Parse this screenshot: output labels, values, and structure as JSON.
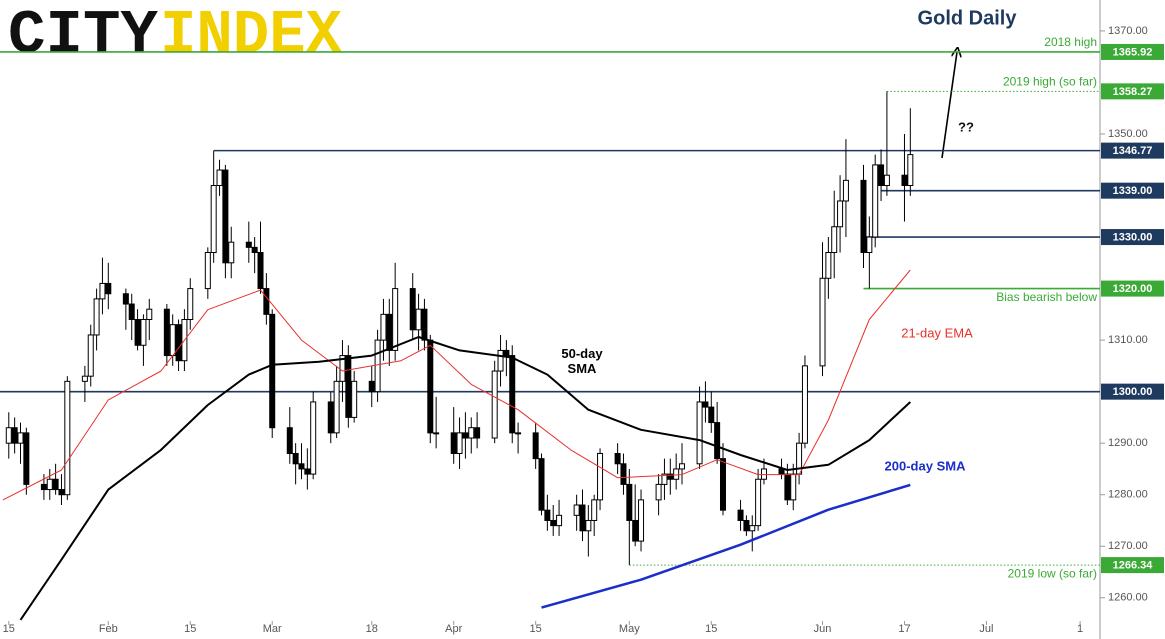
{
  "chart_data": {
    "type": "candlestick",
    "title": "Gold Daily",
    "logo": [
      "CITY",
      "INDEX"
    ],
    "xlim": [
      13.5,
      201.4
    ],
    "xticks": [
      15,
      {
        "value": 32,
        "label": "Feb"
      },
      {
        "value": 46,
        "label": "15"
      },
      {
        "value": 60,
        "label": "Mar"
      },
      {
        "value": 77,
        "label": "18"
      },
      {
        "value": 91,
        "label": "Apr"
      },
      {
        "value": 105,
        "label": "15"
      },
      {
        "value": 121,
        "label": "May"
      },
      {
        "value": 135,
        "label": "15"
      },
      {
        "value": 154,
        "label": "Jun"
      },
      {
        "value": 168,
        "label": "17"
      },
      {
        "value": 182,
        "label": "Jul"
      },
      {
        "value": 198,
        "label": "1"
      }
    ],
    "ylim": [
      1252,
      1376
    ],
    "yticks": [
      {
        "value": 1260,
        "label": "1260.00"
      },
      {
        "value": 1270,
        "label": "1270.00"
      },
      {
        "value": 1280,
        "label": "1280.00"
      },
      {
        "value": 1290,
        "label": "1290.00"
      },
      {
        "value": 1310,
        "label": "1310.00"
      },
      {
        "value": 1350,
        "label": "1350.00"
      },
      {
        "value": 1370,
        "label": "1370.00"
      }
    ],
    "bull_color": "#ffffff",
    "bear_color": "#000000",
    "candles": [
      [
        15,
        1290,
        1296,
        1287,
        1293
      ],
      [
        16,
        1293,
        1295,
        1288,
        1290
      ],
      [
        17,
        1290,
        1294,
        1286,
        1292
      ],
      [
        18,
        1292,
        1293,
        1280,
        1282
      ],
      [
        21,
        1282,
        1284,
        1279,
        1281
      ],
      [
        22,
        1281,
        1285,
        1279,
        1283
      ],
      [
        23,
        1283,
        1286,
        1280,
        1281
      ],
      [
        24,
        1281,
        1284,
        1278,
        1280
      ],
      [
        25,
        1280,
        1303,
        1279,
        1302
      ],
      [
        28,
        1302,
        1305,
        1298,
        1303
      ],
      [
        29,
        1303,
        1313,
        1301,
        1311
      ],
      [
        30,
        1311,
        1320,
        1308,
        1318
      ],
      [
        31,
        1318,
        1326,
        1315,
        1321
      ],
      [
        32,
        1321,
        1325,
        1316,
        1319
      ],
      [
        35,
        1319,
        1320,
        1312,
        1317
      ],
      [
        36,
        1317,
        1319,
        1310,
        1314
      ],
      [
        37,
        1314,
        1316,
        1308,
        1309
      ],
      [
        38,
        1309,
        1315,
        1305,
        1314
      ],
      [
        39,
        1314,
        1318,
        1310,
        1316
      ],
      [
        42,
        1316,
        1317,
        1305,
        1307
      ],
      [
        43,
        1307,
        1315,
        1305,
        1313
      ],
      [
        44,
        1313,
        1314,
        1304,
        1306
      ],
      [
        45,
        1306,
        1316,
        1304,
        1314
      ],
      [
        46,
        1314,
        1322,
        1312,
        1320
      ],
      [
        49,
        1320,
        1328,
        1318,
        1327
      ],
      [
        50,
        1327,
        1346.77,
        1325,
        1340
      ],
      [
        51,
        1340,
        1345,
        1338,
        1343
      ],
      [
        52,
        1343,
        1344,
        1322,
        1325
      ],
      [
        53,
        1325,
        1332,
        1322,
        1329
      ],
      [
        56,
        1329,
        1333,
        1325,
        1328
      ],
      [
        57,
        1328,
        1330,
        1323,
        1327
      ],
      [
        58,
        1327,
        1333,
        1319,
        1320
      ],
      [
        59,
        1320,
        1323,
        1313,
        1315
      ],
      [
        60,
        1315,
        1316,
        1291,
        1293
      ],
      [
        63,
        1293,
        1297,
        1286,
        1288
      ],
      [
        64,
        1288,
        1290,
        1282,
        1286
      ],
      [
        65,
        1286,
        1290,
        1283,
        1285
      ],
      [
        66,
        1285,
        1289,
        1281,
        1284
      ],
      [
        67,
        1284,
        1300,
        1283,
        1298
      ],
      [
        70,
        1298,
        1300,
        1290,
        1292
      ],
      [
        71,
        1292,
        1305,
        1291,
        1302
      ],
      [
        72,
        1302,
        1310,
        1298,
        1307
      ],
      [
        73,
        1307,
        1309,
        1293,
        1295
      ],
      [
        74,
        1295,
        1304,
        1294,
        1302
      ],
      [
        77,
        1302,
        1305,
        1297,
        1300
      ],
      [
        78,
        1300,
        1312,
        1298,
        1310
      ],
      [
        79,
        1310,
        1318,
        1306,
        1315
      ],
      [
        80,
        1315,
        1318,
        1305,
        1308
      ],
      [
        81,
        1308,
        1325,
        1306,
        1320
      ],
      [
        84,
        1320,
        1323,
        1310,
        1312
      ],
      [
        85,
        1312,
        1319,
        1308,
        1316
      ],
      [
        86,
        1316,
        1318,
        1308,
        1310
      ],
      [
        87,
        1310,
        1311,
        1290,
        1292
      ],
      [
        88,
        1292,
        1299,
        1289,
        1292
      ],
      [
        91,
        1292,
        1297,
        1286,
        1288
      ],
      [
        92,
        1288,
        1295,
        1285,
        1292
      ],
      [
        93,
        1292,
        1296,
        1287,
        1291
      ],
      [
        94,
        1291,
        1295,
        1288,
        1293
      ],
      [
        95,
        1293,
        1296,
        1289,
        1291
      ],
      [
        98,
        1291,
        1306,
        1290,
        1304
      ],
      [
        99,
        1304,
        1311,
        1301,
        1308
      ],
      [
        100,
        1308,
        1310,
        1303,
        1307
      ],
      [
        101,
        1307,
        1309,
        1290,
        1292
      ],
      [
        102,
        1292,
        1294,
        1288,
        1292
      ],
      [
        105,
        1292,
        1294,
        1285,
        1287
      ],
      [
        106,
        1287,
        1288,
        1276,
        1277
      ],
      [
        107,
        1277,
        1280,
        1273,
        1275
      ],
      [
        108,
        1275,
        1278,
        1272,
        1274
      ],
      [
        109,
        1274,
        1279,
        1272,
        1276
      ],
      [
        112,
        1276,
        1280,
        1273,
        1278
      ],
      [
        113,
        1278,
        1281,
        1271,
        1273
      ],
      [
        114,
        1273,
        1278,
        1268,
        1275
      ],
      [
        115,
        1275,
        1280,
        1272,
        1279
      ],
      [
        116,
        1279,
        1289,
        1277,
        1288
      ],
      [
        119,
        1288,
        1290,
        1284,
        1286
      ],
      [
        120,
        1286,
        1288,
        1280,
        1282
      ],
      [
        121,
        1282,
        1285,
        1266.34,
        1275
      ],
      [
        122,
        1275,
        1282,
        1270,
        1271
      ],
      [
        123,
        1271,
        1281,
        1269,
        1279
      ],
      [
        126,
        1279,
        1284,
        1276,
        1282
      ],
      [
        127,
        1282,
        1287,
        1279,
        1284
      ],
      [
        128,
        1284,
        1287,
        1280,
        1283
      ],
      [
        129,
        1283,
        1288,
        1281,
        1285
      ],
      [
        130,
        1285,
        1290,
        1282,
        1286
      ],
      [
        133,
        1286,
        1301,
        1285,
        1298
      ],
      [
        134,
        1298,
        1302,
        1294,
        1297
      ],
      [
        135,
        1297,
        1300,
        1292,
        1294
      ],
      [
        136,
        1294,
        1298,
        1286,
        1287
      ],
      [
        137,
        1287,
        1290,
        1276,
        1277
      ],
      [
        140,
        1277,
        1279,
        1273,
        1275
      ],
      [
        141,
        1275,
        1276,
        1272,
        1273
      ],
      [
        142,
        1273,
        1276,
        1269,
        1274
      ],
      [
        143,
        1274,
        1285,
        1273,
        1283
      ],
      [
        144,
        1283,
        1287,
        1282,
        1285
      ],
      [
        147,
        1285,
        1287,
        1283,
        1284
      ],
      [
        148,
        1284,
        1286,
        1278,
        1279
      ],
      [
        149,
        1279,
        1286,
        1277,
        1284
      ],
      [
        150,
        1284,
        1292,
        1282,
        1290
      ],
      [
        151,
        1290,
        1307,
        1289,
        1305
      ],
      [
        154,
        1305,
        1329,
        1303,
        1322
      ],
      [
        155,
        1322,
        1330,
        1318,
        1327
      ],
      [
        156,
        1327,
        1339,
        1322,
        1332
      ],
      [
        157,
        1332,
        1342,
        1327,
        1337
      ],
      [
        158,
        1337,
        1349,
        1330,
        1341
      ],
      [
        161,
        1341,
        1344,
        1324,
        1327
      ],
      [
        162,
        1327,
        1334,
        1320,
        1330
      ],
      [
        163,
        1330,
        1346,
        1328,
        1344
      ],
      [
        164,
        1344,
        1347,
        1337,
        1340
      ],
      [
        165,
        1340,
        1358.27,
        1338,
        1342
      ],
      [
        168,
        1342,
        1350,
        1333,
        1340
      ],
      [
        169,
        1340,
        1355,
        1338,
        1346
      ]
    ],
    "lines": [
      {
        "name": "21-day EMA",
        "color": "#e8302a",
        "width": 1,
        "x": [
          14,
          24,
          32,
          41,
          49,
          58,
          65,
          72,
          82,
          87,
          94,
          102,
          111,
          119,
          130,
          136,
          143,
          150,
          155,
          162,
          169
        ],
        "values": [
          1279,
          1284.8,
          1298.4,
          1304,
          1315.9,
          1319.7,
          1310,
          1304,
          1306,
          1309,
          1301.4,
          1296.5,
          1288.7,
          1283.3,
          1283.9,
          1286.8,
          1283.9,
          1283.9,
          1294.5,
          1314,
          1323.6
        ]
      },
      {
        "name": "50-day SMA",
        "color": "#000000",
        "width": 2,
        "x": [
          17,
          24,
          32,
          41,
          49,
          56,
          60,
          68,
          77,
          85,
          92,
          101,
          107,
          114,
          123,
          133,
          140,
          148,
          155,
          162,
          169
        ],
        "values": [
          1255.7,
          1267.4,
          1281,
          1288.7,
          1297.4,
          1303.3,
          1305.2,
          1305.8,
          1307,
          1310.6,
          1308,
          1306.6,
          1303.3,
          1296.5,
          1292.6,
          1290.6,
          1287.7,
          1284.8,
          1285.8,
          1290.6,
          1298
        ]
      },
      {
        "name": "200-day SMA",
        "color": "#1a2ec8",
        "width": 2.5,
        "x": [
          106,
          123,
          140,
          155,
          169
        ],
        "values": [
          1258.1,
          1263.5,
          1270.3,
          1277.1,
          1281.9
        ]
      }
    ],
    "levels": [
      {
        "value": 1365.92,
        "note": "2018 high",
        "color": "#3aa935"
      },
      {
        "value": 1358.27,
        "note": "2019 high (so far)",
        "color": "#3aa935",
        "from": 165,
        "dotted": true
      },
      {
        "value": 1346.77,
        "color": "#1f3a5f",
        "from": 50
      },
      {
        "value": 1339,
        "label": "1339.00",
        "color": "#1f3a5f",
        "from": 164
      },
      {
        "value": 1330,
        "label": "1330.00",
        "color": "#1f3a5f",
        "from": 161
      },
      {
        "value": 1320,
        "label": "1320.00",
        "note": "Bias bearish below",
        "color": "#3aa935",
        "from": 161
      },
      {
        "value": 1300,
        "label": "1300.00",
        "color": "#1f3a5f"
      },
      {
        "value": 1266.34,
        "note": "2019 low (so far)",
        "color": "#3aa935",
        "from": 121,
        "dotted": true
      }
    ],
    "annotations": [
      "??"
    ]
  }
}
